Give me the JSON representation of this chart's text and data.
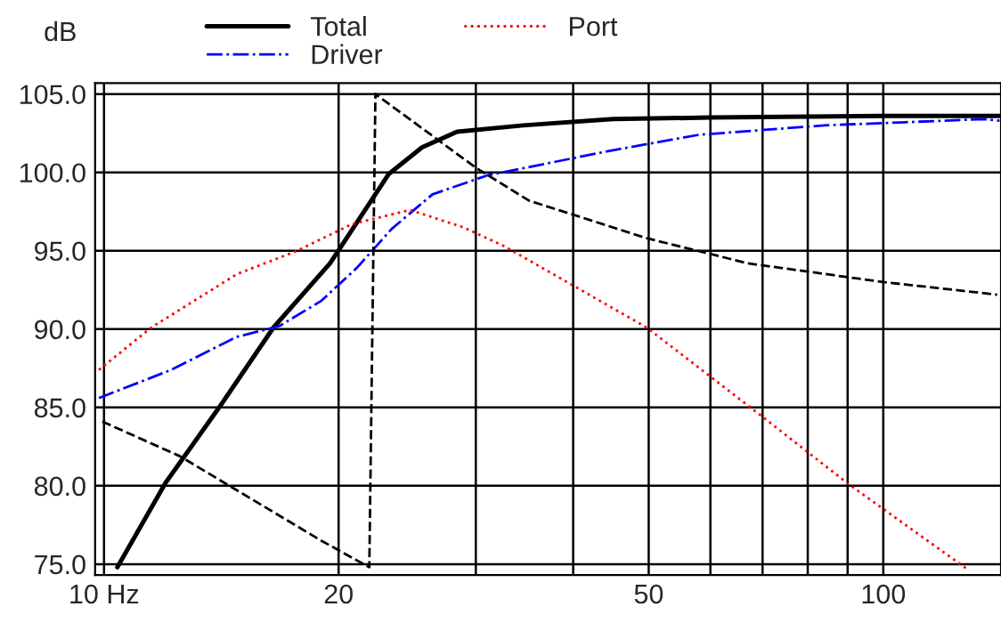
{
  "chart_data": {
    "type": "line",
    "ylabel": "dB",
    "log": "x",
    "xlim": [
      9.74,
      141.6
    ],
    "ylim": [
      74.3,
      105.7
    ],
    "xticks": [
      {
        "value": 10,
        "label": "10 Hz"
      },
      20,
      {
        "value": 30,
        "label": null
      },
      {
        "value": 40,
        "label": null
      },
      50,
      {
        "value": 60,
        "label": null
      },
      {
        "value": 70,
        "label": null
      },
      {
        "value": 80,
        "label": null
      },
      {
        "value": 90,
        "label": null
      },
      100
    ],
    "yticks": [
      {
        "value": 75,
        "label": "75.0"
      },
      {
        "value": 80,
        "label": "80.0"
      },
      {
        "value": 85,
        "label": "85.0"
      },
      {
        "value": 90,
        "label": "90.0"
      },
      {
        "value": 95,
        "label": "95.0"
      },
      {
        "value": 100,
        "label": "100.0"
      },
      {
        "value": 105,
        "label": "105.0"
      }
    ],
    "grid": true,
    "legend": "top",
    "series": [
      {
        "name": "Total",
        "color": "#000000",
        "line_style": "solid",
        "x": [
          10.4,
          12.0,
          14.1,
          16.5,
          19.5,
          23.2,
          25.6,
          28.4,
          34.5,
          45,
          60,
          100,
          141
        ],
        "values": [
          74.8,
          80.2,
          85.1,
          90.1,
          94.2,
          99.9,
          101.6,
          102.6,
          103.0,
          103.4,
          103.5,
          103.6,
          103.6
        ]
      },
      {
        "name": "Driver",
        "color": "#0000ff",
        "line_style": "dashdot",
        "x": [
          9.85,
          12.2,
          14.8,
          16.8,
          19.0,
          21.1,
          23.4,
          26.4,
          31.0,
          44.8,
          58,
          84,
          135,
          141
        ],
        "values": [
          85.6,
          87.4,
          89.5,
          90.2,
          91.8,
          93.9,
          96.4,
          98.6,
          99.8,
          101.4,
          102.4,
          103.0,
          103.4,
          103.3
        ]
      },
      {
        "name": "Port",
        "color": "#ff0000",
        "line_style": "dotted",
        "x": [
          9.85,
          11.5,
          14.8,
          17.7,
          20.8,
          24.7,
          28.9,
          32.6,
          49.7,
          70,
          90.3,
          128
        ],
        "values": [
          87.4,
          90.1,
          93.5,
          95.0,
          96.7,
          97.6,
          96.5,
          95.3,
          90.1,
          84.4,
          80.1,
          74.7
        ]
      },
      {
        "color": "#000000",
        "line_style": "dashed",
        "x": [
          9.95,
          12.5,
          19.0,
          21.9,
          22.1,
          22.3,
          30,
          35.1,
          49.7,
          67,
          100,
          140
        ],
        "values": [
          84.1,
          81.9,
          76.5,
          74.8,
          90.0,
          105.0,
          100.3,
          98.2,
          95.8,
          94.2,
          93.0,
          92.2
        ]
      }
    ]
  }
}
